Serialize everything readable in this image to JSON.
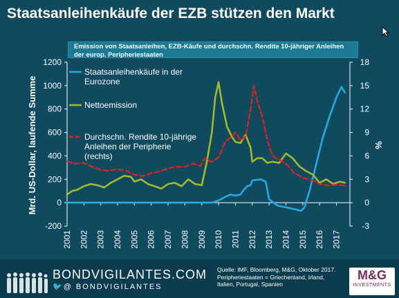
{
  "title": "Staatsanleihenkäufe der EZB stützen den Markt",
  "subtitle": "Emission von Staatsanleihen, EZB-Käufe und durchschn. Rendite 10-jähriger Anleihen der europ. Peripheriestaaten",
  "footer": {
    "brand": "BONDVIGILANTES.COM",
    "handle": "@ BONDVIGILANTES",
    "source_line1": "Quelle: IMF, Bloomberg, M&G, Oktober 2017.",
    "source_line2": "Peripheriestaaten = Griechenland, Irland, Italien, Portugal, Spanien",
    "logo_text": "M&G",
    "logo_sub": "INVESTMENTS"
  },
  "colors": {
    "background": "#0f4a5f",
    "ecb": "#29a9e1",
    "issuance": "#a5b92c",
    "yield": "#e8211d"
  },
  "chart_data": {
    "type": "line",
    "xlabel": "",
    "ylabel": "Mrd. US-Dollar, laufende Summe",
    "ylabel_right": "%",
    "ylim": [
      -200,
      1200
    ],
    "ylim_right": [
      -3,
      18
    ],
    "yticks": [
      "-200",
      "0",
      "200",
      "400",
      "600",
      "800",
      "1000",
      "1200"
    ],
    "yticks_right": [
      "-3",
      "0",
      "3",
      "6",
      "9",
      "12",
      "15",
      "18"
    ],
    "xticks": [
      "2001",
      "2002",
      "2003",
      "2004",
      "2005",
      "2006",
      "2007",
      "2008",
      "2009",
      "2010",
      "2011",
      "2012",
      "2013",
      "2014",
      "2015",
      "2016",
      "2017"
    ],
    "legend_position": "top-left",
    "series": [
      {
        "name": "Staatsanleihenkäufe in der Eurozone",
        "axis": "left",
        "style": "solid",
        "x": [
          2001.0,
          2009.6,
          2010.0,
          2010.4,
          2010.7,
          2011.0,
          2011.3,
          2011.5,
          2011.7,
          2011.9,
          2012.0,
          2012.5,
          2012.8,
          2013.0,
          2013.5,
          2014.0,
          2014.5,
          2014.9,
          2015.1,
          2015.4,
          2015.8,
          2016.2,
          2016.6,
          2017.0,
          2017.3,
          2017.5
        ],
        "values": [
          0,
          0,
          20,
          50,
          70,
          60,
          70,
          110,
          140,
          150,
          190,
          200,
          180,
          30,
          -25,
          -40,
          -55,
          -70,
          -40,
          100,
          330,
          560,
          740,
          900,
          990,
          940
        ]
      },
      {
        "name": "Nettoemission",
        "axis": "left",
        "style": "solid",
        "x": [
          2001.0,
          2001.3,
          2001.6,
          2002.0,
          2002.4,
          2002.8,
          2003.2,
          2003.6,
          2004.0,
          2004.4,
          2004.8,
          2005.0,
          2005.4,
          2005.8,
          2006.2,
          2006.6,
          2007.0,
          2007.4,
          2007.8,
          2008.2,
          2008.6,
          2009.0,
          2009.3,
          2009.6,
          2009.8,
          2010.0,
          2010.2,
          2010.5,
          2010.8,
          2011.0,
          2011.3,
          2011.6,
          2011.9,
          2012.0,
          2012.3,
          2012.6,
          2012.9,
          2013.2,
          2013.6,
          2014.0,
          2014.4,
          2014.8,
          2015.2,
          2015.6,
          2016.0,
          2016.4,
          2016.8,
          2017.2,
          2017.5
        ],
        "values": [
          70,
          100,
          110,
          140,
          160,
          150,
          130,
          170,
          200,
          230,
          220,
          180,
          200,
          160,
          140,
          120,
          160,
          170,
          140,
          200,
          160,
          150,
          350,
          600,
          900,
          1030,
          850,
          650,
          560,
          520,
          510,
          580,
          470,
          350,
          380,
          380,
          340,
          350,
          340,
          420,
          380,
          310,
          270,
          240,
          170,
          200,
          160,
          180,
          170
        ]
      },
      {
        "name": "Durchschn. Rendite 10-jährige Anleihen der Peripherie (rechts)",
        "axis": "right",
        "style": "dashed",
        "x": [
          2001.0,
          2001.5,
          2002.0,
          2002.5,
          2003.0,
          2003.5,
          2004.0,
          2004.5,
          2005.0,
          2005.5,
          2006.0,
          2006.5,
          2007.0,
          2007.5,
          2008.0,
          2008.5,
          2008.9,
          2009.2,
          2009.6,
          2010.0,
          2010.4,
          2010.8,
          2011.0,
          2011.3,
          2011.6,
          2011.9,
          2012.1,
          2012.3,
          2012.6,
          2012.9,
          2013.2,
          2013.6,
          2014.0,
          2014.5,
          2015.0,
          2015.5,
          2016.0,
          2016.5,
          2017.0,
          2017.5
        ],
        "values": [
          5.3,
          5.0,
          5.1,
          4.6,
          4.2,
          4.1,
          4.3,
          4.1,
          3.6,
          3.4,
          3.8,
          4.0,
          4.4,
          4.6,
          4.6,
          5.0,
          4.7,
          5.7,
          5.2,
          5.8,
          7.8,
          8.5,
          9.0,
          8.0,
          8.5,
          12.0,
          15.0,
          13.0,
          11.0,
          8.0,
          6.0,
          5.5,
          5.0,
          3.8,
          3.2,
          2.9,
          2.4,
          2.2,
          2.3,
          2.2
        ]
      }
    ]
  }
}
